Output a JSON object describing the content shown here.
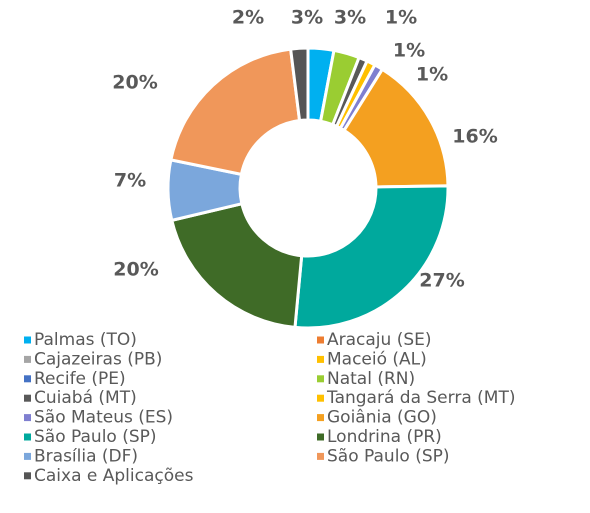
{
  "chart_data": {
    "type": "donut",
    "categories": [
      "Palmas (TO)",
      "Aracaju (SE)",
      "Cajazeiras (PB)",
      "Maceió (AL)",
      "Recife (PE)",
      "Natal (RN)",
      "Cuiabá (MT)",
      "Tangará da Serra (MT)",
      "São Mateus (ES)",
      "Goiânia (GO)",
      "São Paulo (SP)",
      "Londrina (PR)",
      "Brasília (DF)",
      "São Paulo (SP)",
      "Caixa e Aplicações"
    ],
    "values": [
      3,
      0,
      0,
      0,
      0,
      3,
      1,
      1,
      1,
      16,
      27,
      20,
      7,
      20,
      2
    ],
    "value_labels": [
      "3%",
      null,
      null,
      null,
      null,
      "3%",
      "1%",
      "1%",
      "1%",
      "16%",
      "27%",
      "20%",
      "7%",
      "20%",
      "2%"
    ],
    "colors": [
      "#00b0f0",
      "#ed7d31",
      "#a5a5a5",
      "#ffc000",
      "#4472c4",
      "#9acd32",
      "#595959",
      "#ffc000",
      "#7f7fd0",
      "#f4a020",
      "#00a99d",
      "#3f6b27",
      "#7ba7dc",
      "#f0975a",
      "#555555"
    ],
    "legend": "bottom"
  }
}
